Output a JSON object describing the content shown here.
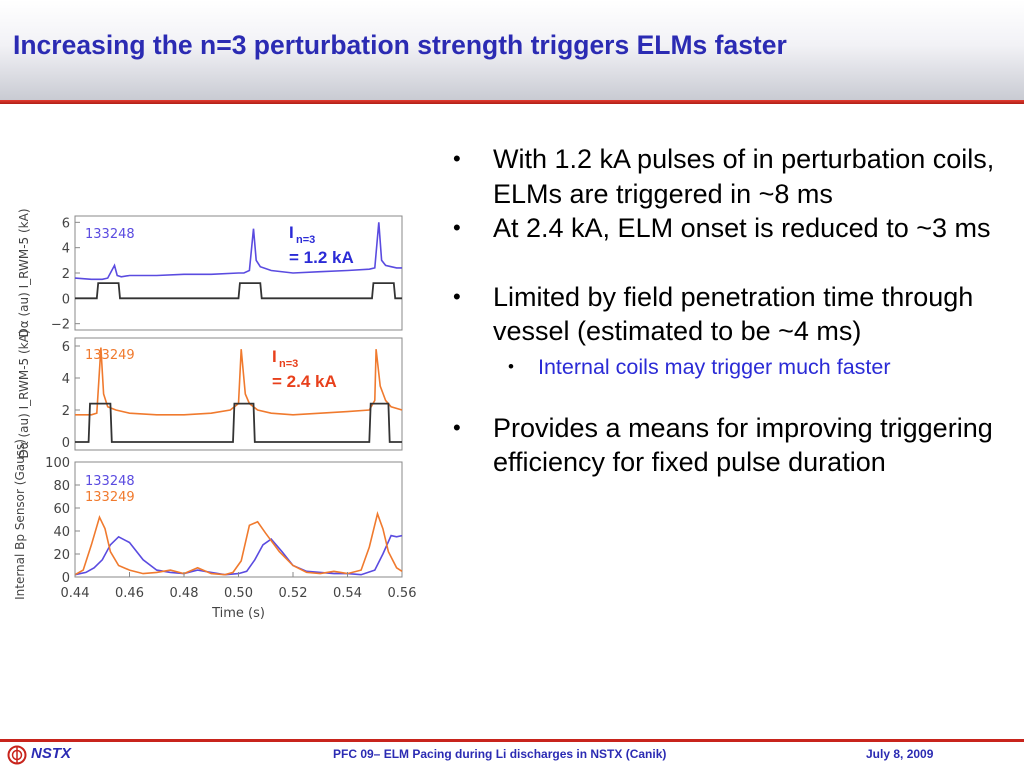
{
  "slide": {
    "title": "Increasing the n=3 perturbation strength triggers ELMs faster",
    "bullets": [
      "With 1.2 kA pulses of in perturbation coils, ELMs are triggered in ~8 ms",
      "At 2.4 kA, ELM onset is reduced to ~3 ms",
      "Limited by field penetration time through vessel (estimated to be ~4 ms)"
    ],
    "sub_bullet": "Internal coils may trigger much faster",
    "last_bullet": "Provides a means for improving triggering efficiency for fixed pulse duration",
    "bullet_symbol": "•"
  },
  "footer": {
    "logo_text": "NSTX",
    "center_text": "PFC 09– ELM Pacing during Li discharges in NSTX (Canik)",
    "date": "July 8, 2009"
  },
  "colors": {
    "title": "#2b2bb3",
    "shot_133248": "#5a4be0",
    "shot_133249": "#f07a2e",
    "coil_current": "#333333",
    "accent_red": "#c8241c"
  },
  "chart_data": [
    {
      "type": "line",
      "panel": "top",
      "ylabel": "Dα (au)   I_RWM-5 (kA)",
      "y_ticks": [
        "6",
        "4",
        "2",
        "0",
        "−2"
      ],
      "ylim": [
        -2.5,
        6.5
      ],
      "xlim": [
        0.44,
        0.56
      ],
      "series": [
        {
          "name": "133248",
          "color": "#5a4be0",
          "x": [
            0.44,
            0.446,
            0.45,
            0.452,
            0.4545,
            0.4555,
            0.457,
            0.46,
            0.47,
            0.48,
            0.49,
            0.5,
            0.502,
            0.504,
            0.5055,
            0.5065,
            0.508,
            0.512,
            0.52,
            0.53,
            0.54,
            0.548,
            0.55,
            0.5515,
            0.5525,
            0.554,
            0.556,
            0.558,
            0.56
          ],
          "y": [
            1.6,
            1.5,
            1.5,
            1.6,
            2.6,
            1.8,
            1.7,
            1.8,
            1.8,
            1.9,
            1.9,
            2.0,
            2.0,
            2.2,
            5.5,
            3.0,
            2.5,
            2.2,
            2.0,
            2.1,
            2.2,
            2.3,
            2.4,
            6.0,
            3.0,
            2.6,
            2.5,
            2.4,
            2.4
          ]
        },
        {
          "name": "I_RWM-5",
          "color": "#333333",
          "x": [
            0.44,
            0.448,
            0.4485,
            0.456,
            0.4565,
            0.5,
            0.5005,
            0.508,
            0.5085,
            0.549,
            0.5495,
            0.557,
            0.5575,
            0.56
          ],
          "y": [
            0,
            0,
            1.2,
            1.2,
            0,
            0,
            1.2,
            1.2,
            0,
            0,
            1.2,
            1.2,
            0,
            0
          ]
        }
      ],
      "annotations": [
        "133248",
        "I",
        "n=3",
        "= 1.2 kA"
      ]
    },
    {
      "type": "line",
      "panel": "middle",
      "ylabel": "Dα (au)   I_RWM-5 (kA)",
      "y_ticks": [
        "6",
        "4",
        "2",
        "0"
      ],
      "ylim": [
        -0.5,
        6.5
      ],
      "xlim": [
        0.44,
        0.56
      ],
      "series": [
        {
          "name": "133249",
          "color": "#f07a2e",
          "x": [
            0.44,
            0.446,
            0.448,
            0.4495,
            0.4505,
            0.452,
            0.455,
            0.46,
            0.47,
            0.48,
            0.49,
            0.497,
            0.5,
            0.501,
            0.5025,
            0.504,
            0.507,
            0.512,
            0.52,
            0.53,
            0.54,
            0.548,
            0.55,
            0.5505,
            0.552,
            0.554,
            0.556,
            0.56
          ],
          "y": [
            1.7,
            1.7,
            1.8,
            5.9,
            3.0,
            2.2,
            2.0,
            1.8,
            1.7,
            1.7,
            1.8,
            2.0,
            2.4,
            5.8,
            3.0,
            2.4,
            2.0,
            1.8,
            1.7,
            1.8,
            1.9,
            2.0,
            2.6,
            5.8,
            3.5,
            2.6,
            2.2,
            2.0
          ]
        },
        {
          "name": "I_RWM-5",
          "color": "#333333",
          "x": [
            0.44,
            0.445,
            0.4455,
            0.453,
            0.4535,
            0.498,
            0.4985,
            0.5055,
            0.506,
            0.548,
            0.5485,
            0.555,
            0.5555,
            0.56
          ],
          "y": [
            0,
            0,
            2.4,
            2.4,
            0,
            0,
            2.4,
            2.4,
            0,
            0,
            2.4,
            2.4,
            0,
            0
          ]
        }
      ],
      "annotations": [
        "133249",
        "I",
        "n=3",
        "= 2.4 kA"
      ]
    },
    {
      "type": "line",
      "panel": "bottom",
      "ylabel": "Internal Bp Sensor (Gauss)",
      "xlabel": "Time (s)",
      "x_ticks": [
        "0.44",
        "0.46",
        "0.48",
        "0.50",
        "0.52",
        "0.54",
        "0.56"
      ],
      "y_ticks": [
        "100",
        "80",
        "60",
        "40",
        "20",
        "0"
      ],
      "ylim": [
        0,
        100
      ],
      "xlim": [
        0.44,
        0.56
      ],
      "series": [
        {
          "name": "133248",
          "color": "#5a4be0",
          "x": [
            0.44,
            0.444,
            0.447,
            0.45,
            0.453,
            0.456,
            0.46,
            0.465,
            0.47,
            0.475,
            0.48,
            0.485,
            0.49,
            0.495,
            0.5,
            0.503,
            0.506,
            0.509,
            0.512,
            0.516,
            0.52,
            0.525,
            0.53,
            0.535,
            0.54,
            0.545,
            0.55,
            0.553,
            0.556,
            0.558,
            0.56
          ],
          "y": [
            2,
            4,
            8,
            15,
            28,
            35,
            30,
            15,
            6,
            4,
            3,
            6,
            4,
            2,
            3,
            5,
            15,
            28,
            33,
            22,
            10,
            5,
            4,
            3,
            3,
            2,
            6,
            20,
            36,
            35,
            36
          ]
        },
        {
          "name": "133249",
          "color": "#f07a2e",
          "x": [
            0.44,
            0.443,
            0.446,
            0.449,
            0.451,
            0.453,
            0.456,
            0.46,
            0.465,
            0.47,
            0.475,
            0.48,
            0.485,
            0.49,
            0.495,
            0.498,
            0.501,
            0.504,
            0.507,
            0.51,
            0.515,
            0.52,
            0.525,
            0.53,
            0.535,
            0.54,
            0.545,
            0.548,
            0.551,
            0.553,
            0.555,
            0.558,
            0.56
          ],
          "y": [
            2,
            6,
            28,
            52,
            42,
            22,
            10,
            6,
            3,
            4,
            6,
            3,
            8,
            3,
            2,
            4,
            14,
            45,
            48,
            38,
            22,
            10,
            4,
            3,
            5,
            3,
            6,
            26,
            55,
            42,
            22,
            8,
            5
          ]
        }
      ],
      "legend": [
        "133248",
        "133249"
      ]
    }
  ]
}
